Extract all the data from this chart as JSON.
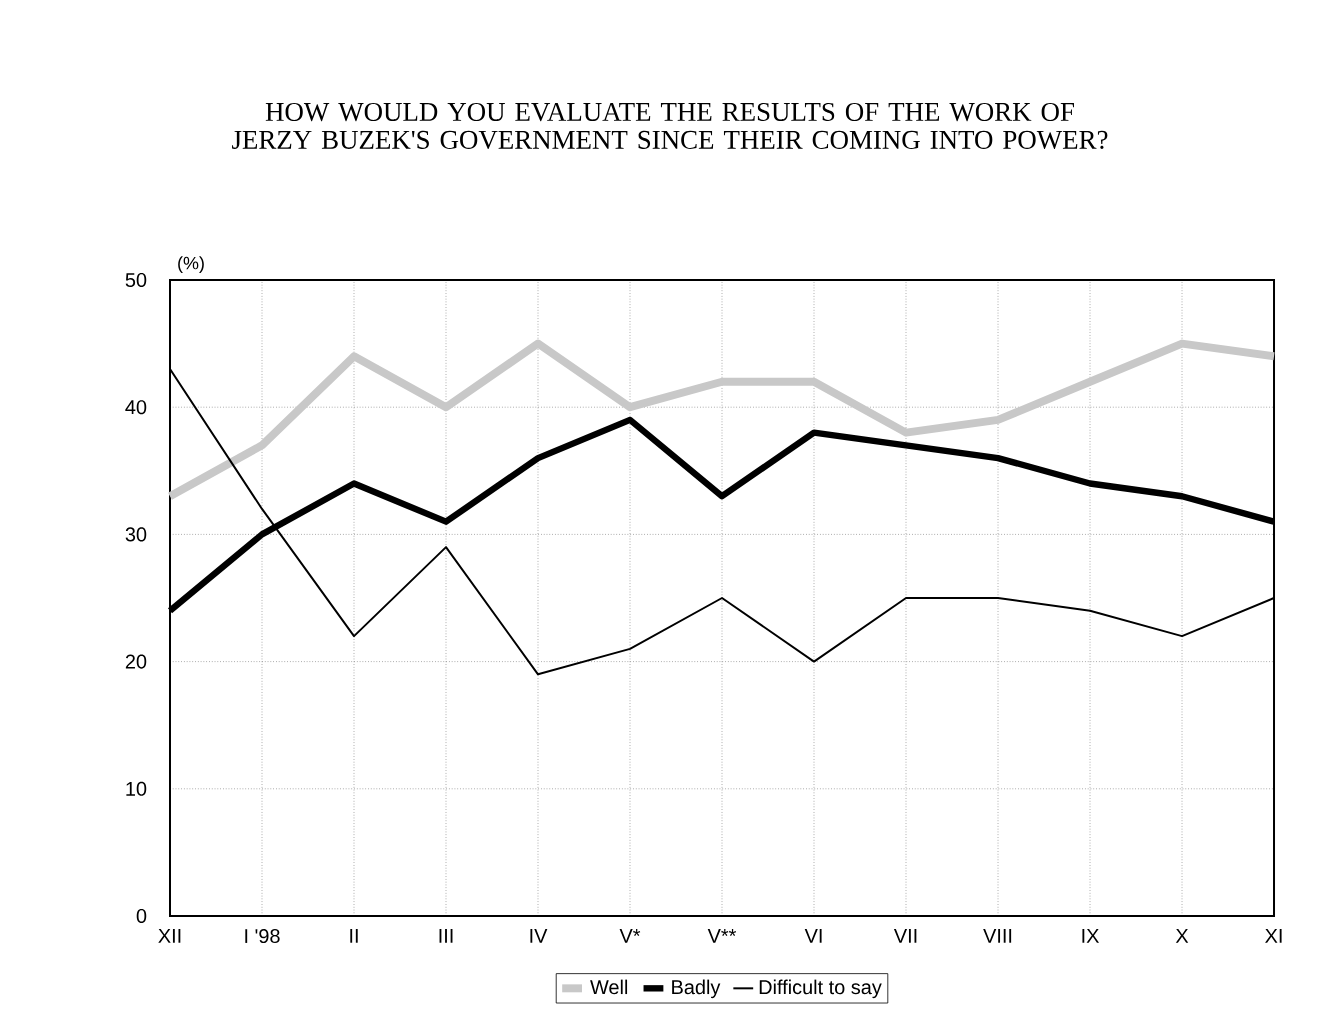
{
  "chart_data": {
    "type": "line",
    "title": "HOW WOULD YOU EVALUATE THE RESULTS OF THE WORK OF JERZY BUZEK'S GOVERNMENT SINCE THEIR COMING INTO POWER?",
    "ylabel": "(%)",
    "categories": [
      "XII",
      "I '98",
      "II",
      "III",
      "IV",
      "V*",
      "V**",
      "VI",
      "VII",
      "VIII",
      "IX",
      "X",
      "XI"
    ],
    "series": [
      {
        "name": "Well",
        "color": "#c8c8c8",
        "values": [
          33,
          37,
          44,
          40,
          45,
          40,
          42,
          42,
          38,
          39,
          42,
          45,
          44
        ]
      },
      {
        "name": "Badly",
        "color": "#000000",
        "values": [
          24,
          30,
          34,
          31,
          36,
          39,
          33,
          38,
          37,
          36,
          34,
          33,
          31
        ]
      },
      {
        "name": "Difficult to say",
        "color": "#000000",
        "values": [
          43,
          32,
          22,
          29,
          19,
          21,
          25,
          20,
          25,
          25,
          24,
          22,
          25
        ]
      }
    ],
    "ylim": [
      0,
      50
    ],
    "yticks": [
      0,
      10,
      20,
      30,
      40,
      50
    ],
    "grid": true,
    "legend": "bottom",
    "marker": "none",
    "line_style": "solid"
  }
}
